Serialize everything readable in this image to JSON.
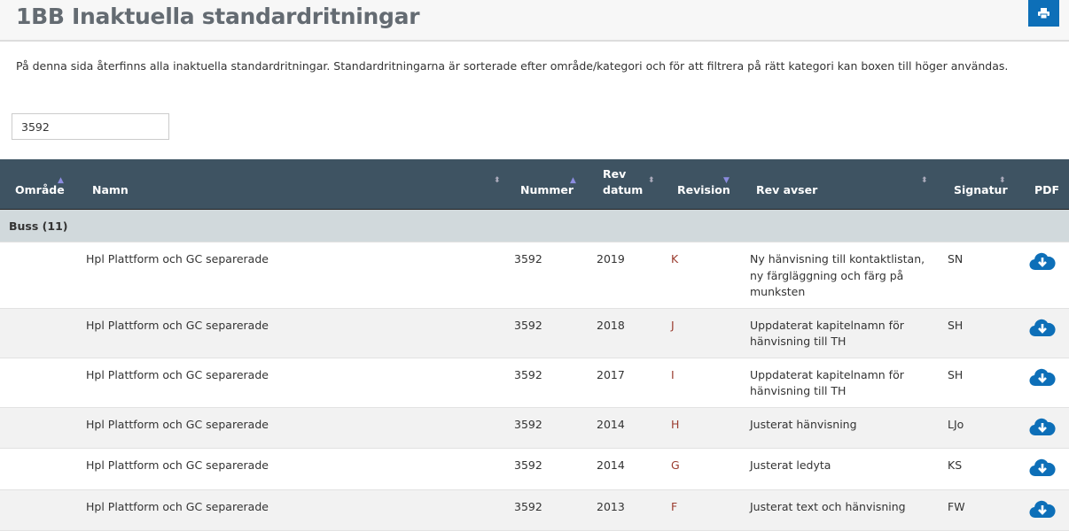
{
  "title": "1BB Inaktuella standardritningar",
  "print_icon": "print-icon",
  "intro": "På denna sida återfinns alla inaktuella standardritningar. Standardritningarna är sorterade efter område/kategori och för att filtrera på rätt kategori kan boxen till höger användas.",
  "search": {
    "value": "3592"
  },
  "columns": [
    "Område",
    "Namn",
    "Nummer",
    "Rev datum",
    "Revision",
    "Rev avser",
    "Signatur",
    "PDF"
  ],
  "group": "Buss (11)",
  "rows": [
    {
      "namn": "Hpl Plattform och GC separerade",
      "nummer": "3592",
      "datum": "2019",
      "revision": "K",
      "avser": "Ny hänvisning till kontaktlistan, ny färgläggning och färg på munksten",
      "signatur": "SN"
    },
    {
      "namn": "Hpl Plattform och GC separerade",
      "nummer": "3592",
      "datum": "2018",
      "revision": "J",
      "avser": "Uppdaterat kapitelnamn för hänvisning till TH",
      "signatur": "SH"
    },
    {
      "namn": "Hpl Plattform och GC separerade",
      "nummer": "3592",
      "datum": "2017",
      "revision": "I",
      "avser": "Uppdaterat kapitelnamn för hänvisning till TH",
      "signatur": "SH"
    },
    {
      "namn": "Hpl Plattform och GC separerade",
      "nummer": "3592",
      "datum": "2014",
      "revision": "H",
      "avser": "Justerat hänvisning",
      "signatur": "LJo"
    },
    {
      "namn": "Hpl Plattform och GC separerade",
      "nummer": "3592",
      "datum": "2014",
      "revision": "G",
      "avser": "Justerat ledyta",
      "signatur": "KS"
    },
    {
      "namn": "Hpl Plattform och GC separerade",
      "nummer": "3592",
      "datum": "2013",
      "revision": "F",
      "avser": "Justerat text och hänvisning",
      "signatur": "FW"
    }
  ],
  "colors": {
    "header": "#3e5362",
    "accent": "#0d6fb8",
    "revision": "#9a3b2e"
  }
}
